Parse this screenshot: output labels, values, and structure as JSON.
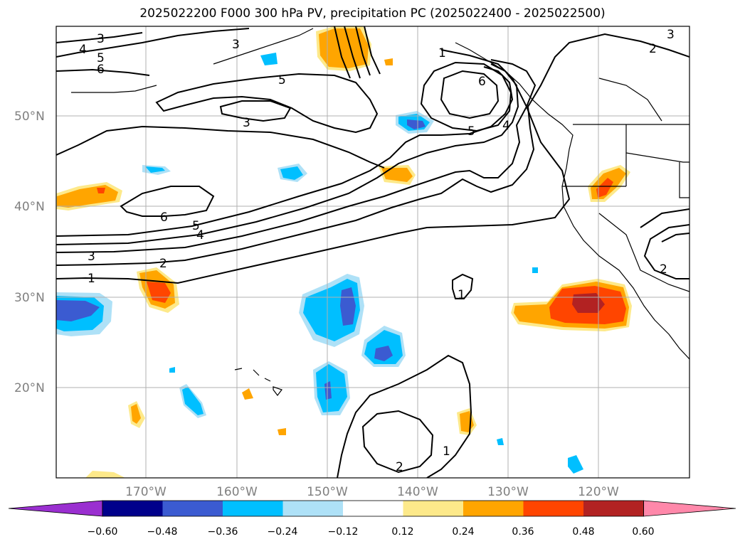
{
  "title": "2025022200 F000 300 hPa PV, precipitation PC (2025022400 - 2025022500)",
  "lon_labels": [
    "170°W",
    "160°W",
    "150°W",
    "140°W",
    "130°W",
    "120°W"
  ],
  "lat_labels": [
    "50°N",
    "40°N",
    "30°N",
    "20°N"
  ],
  "colorbar": {
    "ticks": [
      "−0.60",
      "−0.48",
      "−0.36",
      "−0.24",
      "−0.12",
      "0.12",
      "0.24",
      "0.36",
      "0.48",
      "0.60"
    ],
    "colors": [
      "#9a2fd0",
      "#00008b",
      "#3b5bd1",
      "#00bfff",
      "#aee1f7",
      "#ffffff",
      "#fde98a",
      "#ffa500",
      "#ff4500",
      "#b22222",
      "#ff88aa"
    ]
  },
  "contour_labels": [
    "1",
    "2",
    "3",
    "4",
    "5",
    "6"
  ],
  "colors": {
    "neg_light": "#aee1f7",
    "neg_mid": "#00bfff",
    "neg_dark": "#3b5bd1",
    "pos_light": "#fde98a",
    "pos_mid": "#ffa500",
    "pos_strong": "#ff4500",
    "pos_dark": "#b22222",
    "grid": "#b0b0b0",
    "contour": "#000000"
  }
}
